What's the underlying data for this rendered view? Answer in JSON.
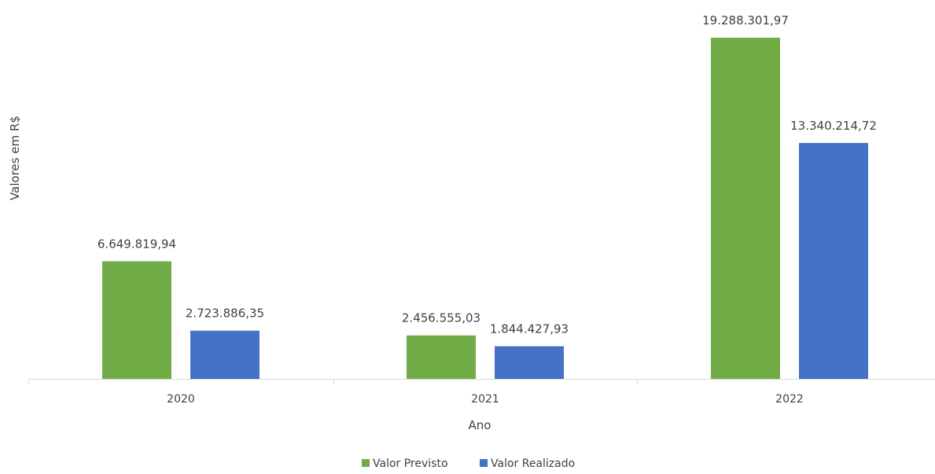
{
  "chart_data": {
    "type": "bar",
    "categories": [
      "2020",
      "2021",
      "2022"
    ],
    "series": [
      {
        "name": "Valor Previsto",
        "color": "#70ad47",
        "values": [
          6649819.94,
          2456555.03,
          19288301.97
        ],
        "labels": [
          "6.649.819,94",
          "2.456.555,03",
          "19.288.301,97"
        ]
      },
      {
        "name": "Valor Realizado",
        "color": "#4472c4",
        "values": [
          2723886.35,
          1844427.93,
          13340214.72
        ],
        "labels": [
          "2.723.886,35",
          "1.844.427,93",
          "13.340.214,72"
        ]
      }
    ],
    "title": "",
    "xlabel": "Ano",
    "ylabel": "Valores em R$",
    "ylim": [
      0,
      19288301.97
    ],
    "grid": false,
    "legend_position": "bottom"
  }
}
